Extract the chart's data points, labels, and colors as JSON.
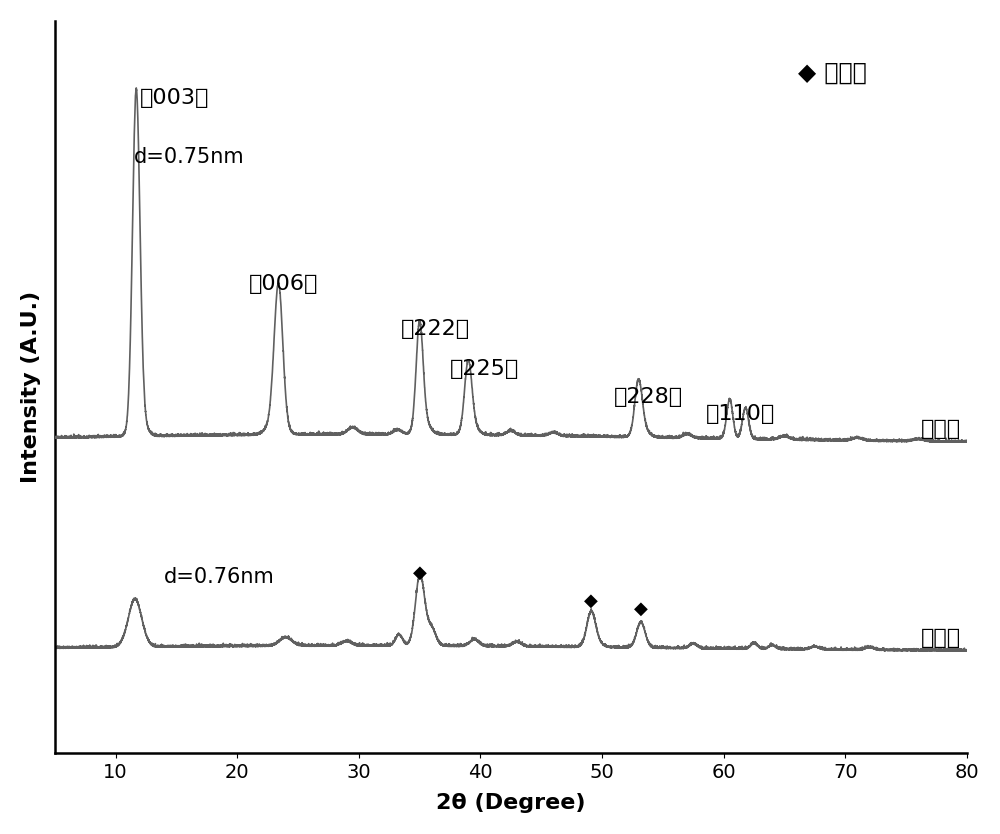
{
  "xlabel": "2θ (Degree)",
  "ylabel": "Intensity (A.U.)",
  "xlim": [
    5,
    80
  ],
  "line_color": "#606060",
  "line_width": 1.2,
  "background_color": "#ffffff",
  "legend_marker": "◆",
  "legend_text": "氧化鐵",
  "label_before": "球磨前",
  "label_after": "球磨后",
  "ann_003": "(（003）",
  "ann_d075": "d=0.75nm",
  "ann_006": "（006）",
  "ann_222": "（222）",
  "ann_225": "（225）",
  "ann_228": "（228）",
  "ann_110": "（110）",
  "ann_d076": "d=0.76nm",
  "axis_fontsize": 16,
  "tick_fontsize": 14,
  "annot_fontsize": 15
}
